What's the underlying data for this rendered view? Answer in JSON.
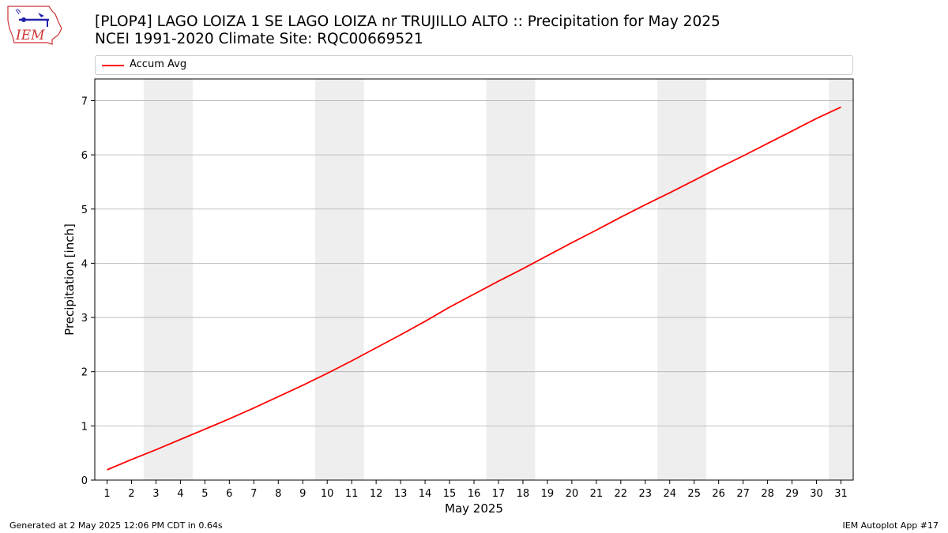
{
  "header": {
    "title_line1": "[PLOP4] LAGO LOIZA 1 SE LAGO LOIZA nr TRUJILLO ALTO :: Precipitation for May 2025",
    "title_line2": "NCEI 1991-2020 Climate Site: RQC00669521"
  },
  "logo": {
    "text": "IEM",
    "icon": "iem-logo-icon"
  },
  "footer": {
    "left": "Generated at 2 May 2025 12:06 PM CDT in 0.64s",
    "right": "IEM Autoplot App #17"
  },
  "chart_data": {
    "type": "line",
    "title": "[PLOP4] LAGO LOIZA 1 SE LAGO LOIZA nr TRUJILLO ALTO :: Precipitation for May 2025",
    "subtitle": "NCEI 1991-2020 Climate Site: RQC00669521",
    "xlabel": "May 2025",
    "ylabel": "Precipitation [inch]",
    "xlim": [
      0.5,
      31.5
    ],
    "ylim": [
      0,
      7.4
    ],
    "x_ticks": [
      1,
      2,
      3,
      4,
      5,
      6,
      7,
      8,
      9,
      10,
      11,
      12,
      13,
      14,
      15,
      16,
      17,
      18,
      19,
      20,
      21,
      22,
      23,
      24,
      25,
      26,
      27,
      28,
      29,
      30,
      31
    ],
    "y_ticks": [
      0,
      1,
      2,
      3,
      4,
      5,
      6,
      7
    ],
    "grid": "horizontal",
    "legend_position": "top",
    "weekend_shading": [
      [
        2.5,
        4.5
      ],
      [
        9.5,
        11.5
      ],
      [
        16.5,
        18.5
      ],
      [
        23.5,
        25.5
      ],
      [
        30.5,
        31.5
      ]
    ],
    "colors": {
      "shade": "#eeeeee",
      "grid": "#b0b0b0",
      "line": "#ff0000"
    },
    "series": [
      {
        "name": "Accum Avg",
        "color": "#ff0000",
        "x": [
          1,
          2,
          3,
          4,
          5,
          6,
          7,
          8,
          9,
          10,
          11,
          12,
          13,
          14,
          15,
          16,
          17,
          18,
          19,
          20,
          21,
          22,
          23,
          24,
          25,
          26,
          27,
          28,
          29,
          30,
          31
        ],
        "values": [
          0.19,
          0.38,
          0.56,
          0.75,
          0.94,
          1.13,
          1.33,
          1.54,
          1.75,
          1.97,
          2.2,
          2.44,
          2.68,
          2.93,
          3.19,
          3.43,
          3.67,
          3.9,
          4.14,
          4.38,
          4.61,
          4.85,
          5.08,
          5.3,
          5.53,
          5.76,
          5.98,
          6.21,
          6.44,
          6.67,
          6.88
        ]
      }
    ]
  }
}
